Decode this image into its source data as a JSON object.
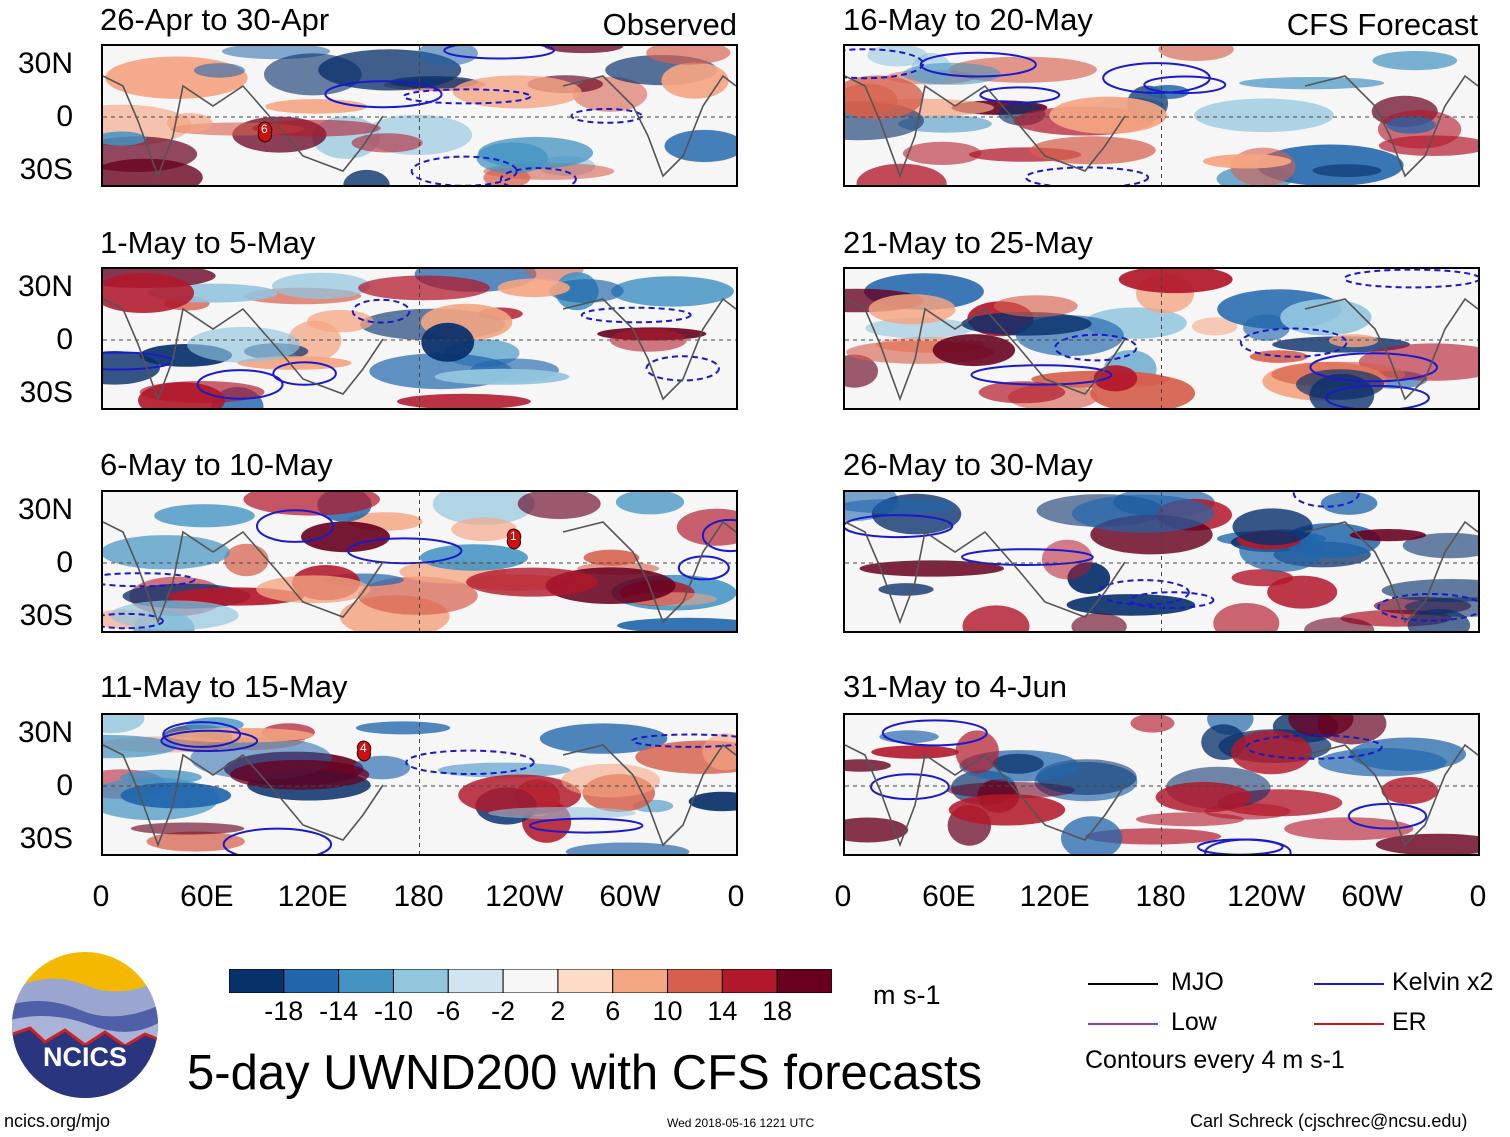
{
  "header": {
    "left_label": "Observed",
    "right_label": "CFS Forecast"
  },
  "panels": {
    "observed": [
      "26-Apr to 30-Apr",
      "1-May to 5-May",
      "6-May to 10-May",
      "11-May to 15-May"
    ],
    "forecast": [
      "16-May to 20-May",
      "21-May to 25-May",
      "26-May to 30-May",
      "31-May to 4-Jun"
    ]
  },
  "axes": {
    "lat": [
      "30N",
      "0",
      "30S"
    ],
    "lon": [
      "0",
      "60E",
      "120E",
      "180",
      "120W",
      "60W",
      "0"
    ]
  },
  "storms": [
    {
      "label": "6",
      "panel": 0
    },
    {
      "label": "1",
      "panel": 2
    },
    {
      "label": "4",
      "panel": 3
    }
  ],
  "colorbar": {
    "colors": [
      "#08306b",
      "#2166ac",
      "#4393c3",
      "#92c5de",
      "#d1e5f0",
      "#f7f7f7",
      "#fddbc7",
      "#f4a582",
      "#d6604d",
      "#b2182b",
      "#67001f"
    ],
    "ticks": [
      "-18",
      "-14",
      "-10",
      "-6",
      "-2",
      "2",
      "6",
      "10",
      "14",
      "18"
    ],
    "units": "m s-1"
  },
  "legend": {
    "items": [
      {
        "label": "MJO",
        "color": "#000000"
      },
      {
        "label": "Kelvin x2",
        "color": "#1a1acc"
      },
      {
        "label": "Low",
        "color": "#9933cc"
      },
      {
        "label": "ER",
        "color": "#dd1111"
      }
    ],
    "contour_note": "Contours every 4 m s-1"
  },
  "logo": {
    "text": "NCICS"
  },
  "title": "5-day UWND200 with CFS forecasts",
  "footer": {
    "url": "ncics.org/mjo",
    "timestamp": "Wed 2018-05-16 1221 UTC",
    "credit": "Carl Schreck (cjschrec@ncsu.edu)"
  }
}
